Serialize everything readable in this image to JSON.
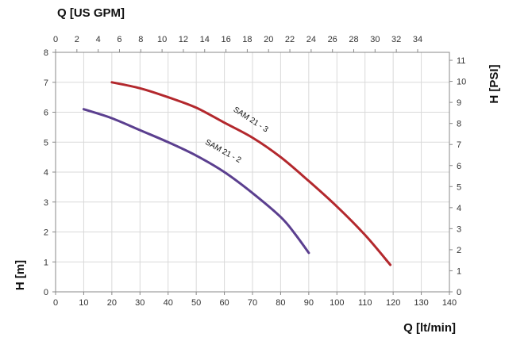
{
  "chart_data": {
    "type": "line",
    "title": "",
    "xlabel_bottom": "Q [lt/min]",
    "xlabel_top": "Q [US GPM]",
    "ylabel_left": "H [m]",
    "ylabel_right": "H [PSI]",
    "xlim": [
      0,
      140
    ],
    "ylim": [
      0,
      8
    ],
    "x_ticks": [
      "0",
      "10",
      "20",
      "30",
      "40",
      "50",
      "60",
      "70",
      "80",
      "90",
      "100",
      "110",
      "120",
      "130",
      "140"
    ],
    "y_ticks": [
      "0",
      "1",
      "2",
      "3",
      "4",
      "5",
      "6",
      "7",
      "8"
    ],
    "top_ticks": [
      "0",
      "2",
      "4",
      "6",
      "8",
      "10",
      "12",
      "14",
      "16",
      "18",
      "20",
      "22",
      "24",
      "26",
      "28",
      "30",
      "32",
      "34"
    ],
    "right_ticks": [
      "0",
      "1",
      "2",
      "3",
      "4",
      "5",
      "6",
      "7",
      "8",
      "9",
      "10",
      "11"
    ],
    "grid": true,
    "series": [
      {
        "name": "SAM 21 - 2",
        "color": "#5b3f8f",
        "x": [
          10,
          20,
          30,
          40,
          50,
          60,
          70,
          80,
          85,
          90
        ],
        "y": [
          6.1,
          5.8,
          5.4,
          5.0,
          4.55,
          4.0,
          3.3,
          2.5,
          1.95,
          1.3
        ]
      },
      {
        "name": "SAM 21 - 3",
        "color": "#b3282d",
        "x": [
          20,
          30,
          40,
          50,
          60,
          70,
          80,
          90,
          100,
          110,
          119
        ],
        "y": [
          7.0,
          6.8,
          6.5,
          6.15,
          5.65,
          5.15,
          4.5,
          3.7,
          2.85,
          1.9,
          0.9
        ]
      }
    ]
  }
}
